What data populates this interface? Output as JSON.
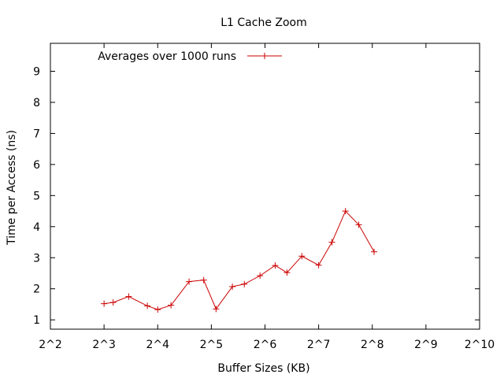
{
  "chart_data": {
    "type": "line",
    "title": "L1 Cache Zoom",
    "xlabel": "Buffer Sizes (KB)",
    "ylabel": "Time per Access (ns)",
    "x_scale": "log2",
    "xlim": [
      4,
      1024
    ],
    "ylim": [
      0.7,
      9.9
    ],
    "x_ticks": [
      4,
      8,
      16,
      32,
      64,
      128,
      256,
      512,
      1024
    ],
    "x_tick_labels": [
      "2^2",
      "2^3",
      "2^4",
      "2^5",
      "2^6",
      "2^7",
      "2^8",
      "2^9",
      "2^10"
    ],
    "y_ticks": [
      1,
      2,
      3,
      4,
      5,
      6,
      7,
      8,
      9
    ],
    "y_tick_labels": [
      "1",
      "2",
      "3",
      "4",
      "5",
      "6",
      "7",
      "8",
      "9"
    ],
    "grid": false,
    "legend": {
      "position": "top-left"
    },
    "colors": {
      "series": "#cc0000",
      "axis": "#000000"
    },
    "series": [
      {
        "name": "Averages over 1000 runs",
        "marker": "plus",
        "points": [
          {
            "x": 8,
            "y": 1.52
          },
          {
            "x": 9,
            "y": 1.56
          },
          {
            "x": 11,
            "y": 1.75
          },
          {
            "x": 14,
            "y": 1.45
          },
          {
            "x": 16,
            "y": 1.33
          },
          {
            "x": 19,
            "y": 1.47
          },
          {
            "x": 24,
            "y": 2.23
          },
          {
            "x": 29,
            "y": 2.28
          },
          {
            "x": 34,
            "y": 1.35
          },
          {
            "x": 42,
            "y": 2.07
          },
          {
            "x": 49,
            "y": 2.15
          },
          {
            "x": 60,
            "y": 2.42
          },
          {
            "x": 73,
            "y": 2.75
          },
          {
            "x": 85,
            "y": 2.52
          },
          {
            "x": 103,
            "y": 3.05
          },
          {
            "x": 128,
            "y": 2.76
          },
          {
            "x": 152,
            "y": 3.5
          },
          {
            "x": 181,
            "y": 4.5
          },
          {
            "x": 215,
            "y": 4.06
          },
          {
            "x": 262,
            "y": 3.19
          }
        ]
      }
    ]
  }
}
